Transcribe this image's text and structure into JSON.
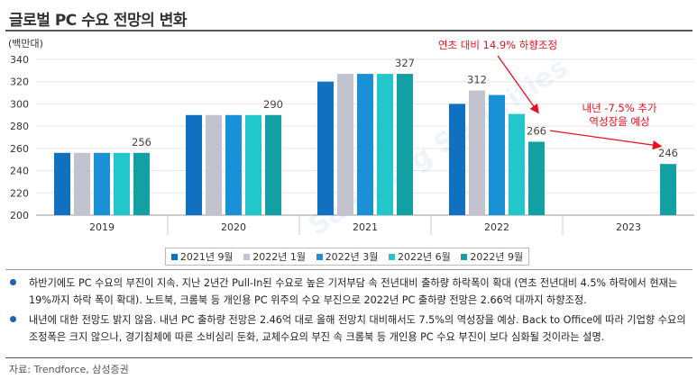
{
  "title": "글로벌 PC 수요 전망의 변화",
  "source": "자료: Trendforce, 삼성증권",
  "bullets": [
    "하반기에도 PC 수요의 부진이 지속. 지난 2년간 Pull-In된 수요로 높은 기저부담 속 전년대비 출하량 하락폭이 확대 (연초 전년대비 4.5% 하락에서 현재는 19%까지 하락 폭이 확대). 노트북, 크롬북 등 개인용 PC 위주의 수요 부진으로 2022년 PC 출하량 전망은 2.66억 대까지 하향조정.",
    "내년에 대한 전망도 밝지 않음. 내년 PC 출하량 전망은 2.46억 대로 올해 전망치 대비해서도 7.5%의 역성장을 예상. Back to Office에 따라 기업향 수요의 조정폭은 크지 않으나, 경기침체에 따른 소비심리 둔화, 교체수요의 부진 속 크롬북 등 개인용 PC 수요 부진이 보다 심화될 것이라는 설명."
  ],
  "chart_data": {
    "type": "bar",
    "ylabel": "(백만대)",
    "ylim": [
      200,
      340
    ],
    "yticks": [
      200,
      220,
      240,
      260,
      280,
      300,
      320,
      340
    ],
    "categories": [
      "2019",
      "2020",
      "2021",
      "2022",
      "2023"
    ],
    "series": [
      {
        "name": "2021년 9월",
        "color": "#1170c0",
        "values": [
          256,
          290,
          320,
          300,
          null
        ]
      },
      {
        "name": "2022년 1월",
        "color": "#c3c3cf",
        "values": [
          256,
          290,
          327,
          312,
          null
        ]
      },
      {
        "name": "2022년 3월",
        "color": "#1a90d6",
        "values": [
          256,
          290,
          327,
          308,
          null
        ]
      },
      {
        "name": "2022년 6월",
        "color": "#22c7cc",
        "values": [
          256,
          290,
          327,
          291,
          null
        ]
      },
      {
        "name": "2022년 9월",
        "color": "#13a0a3",
        "values": [
          256,
          290,
          327,
          266,
          246
        ]
      }
    ],
    "data_labels": [
      {
        "category": "2019",
        "text": "256",
        "value": 256
      },
      {
        "category": "2020",
        "text": "290",
        "value": 290
      },
      {
        "category": "2021",
        "text": "327",
        "value": 327
      },
      {
        "category": "2022",
        "series": 1,
        "text": "312",
        "value": 312
      },
      {
        "category": "2022",
        "series": 4,
        "text": "266",
        "value": 266
      },
      {
        "category": "2023",
        "series": 4,
        "text": "246",
        "value": 246
      }
    ],
    "annotations": [
      {
        "text": "연초 대비 14.9% 하향조정",
        "color": "#e8101e"
      },
      {
        "text": [
          "내년 -7.5% 추가",
          "역성장을 예상"
        ],
        "color": "#e8101e"
      }
    ],
    "legend_position": "bottom",
    "grid": true,
    "watermark": "Samsung Securities"
  }
}
